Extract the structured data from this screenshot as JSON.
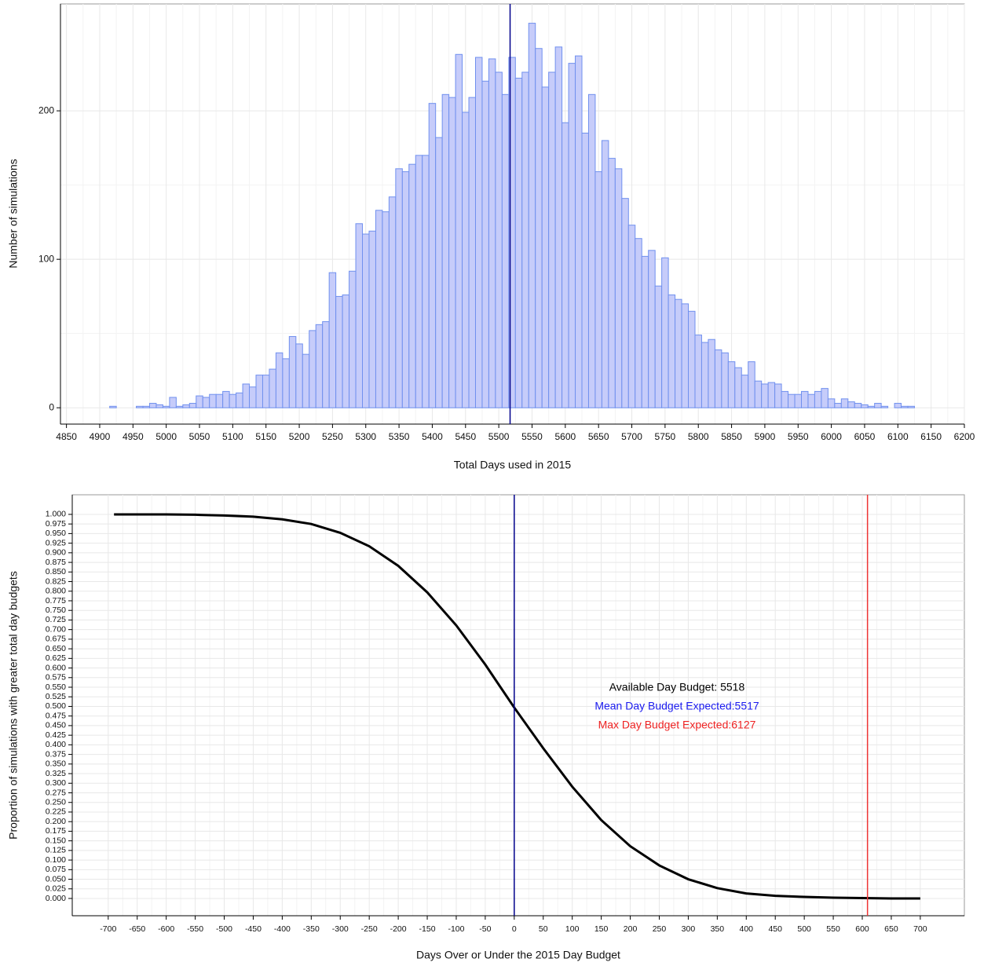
{
  "chart_data": [
    {
      "type": "histogram",
      "xlabel": "Total Days used in 2015",
      "ylabel": "Number of simulations",
      "bins": [
        4905,
        4915,
        4925,
        4935,
        4945,
        4955,
        4965,
        4975,
        4985,
        4995,
        5005,
        5015,
        5025,
        5035,
        5045,
        5055,
        5065,
        5075,
        5085,
        5095,
        5105,
        5115,
        5125,
        5135,
        5145,
        5155,
        5165,
        5175,
        5185,
        5195,
        5205,
        5215,
        5225,
        5235,
        5245,
        5255,
        5265,
        5275,
        5285,
        5295,
        5305,
        5315,
        5325,
        5335,
        5345,
        5355,
        5365,
        5375,
        5385,
        5395,
        5405,
        5415,
        5425,
        5435,
        5445,
        5455,
        5465,
        5475,
        5485,
        5495,
        5505,
        5515,
        5525,
        5535,
        5545,
        5555,
        5565,
        5575,
        5585,
        5595,
        5605,
        5615,
        5625,
        5635,
        5645,
        5655,
        5665,
        5675,
        5685,
        5695,
        5705,
        5715,
        5725,
        5735,
        5745,
        5755,
        5765,
        5775,
        5785,
        5795,
        5805,
        5815,
        5825,
        5835,
        5845,
        5855,
        5865,
        5875,
        5885,
        5895,
        5905,
        5915,
        5925,
        5935,
        5945,
        5955,
        5965,
        5975,
        5985,
        5995,
        6005,
        6015,
        6025,
        6035,
        6045,
        6055,
        6065,
        6075,
        6085,
        6095,
        6105,
        6115,
        6125,
        6135
      ],
      "values": [
        0,
        1,
        0,
        0,
        0,
        1,
        1,
        3,
        2,
        1,
        7,
        1,
        2,
        3,
        8,
        7,
        9,
        9,
        11,
        9,
        10,
        16,
        14,
        22,
        22,
        26,
        37,
        33,
        48,
        43,
        36,
        52,
        56,
        58,
        91,
        75,
        76,
        92,
        124,
        117,
        119,
        133,
        132,
        142,
        161,
        159,
        164,
        170,
        170,
        205,
        182,
        211,
        209,
        238,
        199,
        209,
        236,
        220,
        235,
        226,
        211,
        236,
        222,
        226,
        259,
        242,
        216,
        226,
        243,
        192,
        232,
        237,
        185,
        211,
        159,
        180,
        168,
        161,
        141,
        123,
        114,
        102,
        106,
        82,
        101,
        76,
        73,
        70,
        65,
        49,
        44,
        46,
        39,
        37,
        31,
        27,
        22,
        31,
        18,
        16,
        17,
        16,
        11,
        9,
        9,
        11,
        9,
        11,
        13,
        6,
        3,
        6,
        4,
        3,
        2,
        1,
        3,
        1,
        0,
        3,
        1,
        1,
        0
      ],
      "color": "#c6ccfa",
      "edgecolor": "#7090ee",
      "vlines": [
        {
          "value": 5517,
          "color": "#00008b"
        }
      ],
      "xlim": [
        4841,
        6200
      ],
      "xticks": [
        4850,
        4900,
        4950,
        5000,
        5050,
        5100,
        5150,
        5200,
        5250,
        5300,
        5350,
        5400,
        5450,
        5500,
        5550,
        5600,
        5650,
        5700,
        5750,
        5800,
        5850,
        5900,
        5950,
        6000,
        6050,
        6100,
        6150,
        6200
      ],
      "ylim": [
        -11,
        272
      ],
      "yticks": [
        0,
        100,
        200
      ],
      "grid": true
    },
    {
      "type": "line",
      "xlabel": "Days Over or Under the 2015 Day Budget",
      "ylabel": "Proportion of simulations with greater total day budgets",
      "x": [
        -690,
        -650,
        -600,
        -550,
        -500,
        -450,
        -400,
        -350,
        -300,
        -250,
        -200,
        -150,
        -100,
        -50,
        0,
        50,
        100,
        150,
        200,
        250,
        300,
        350,
        400,
        450,
        500,
        550,
        600,
        650,
        700
      ],
      "values": [
        1.0,
        1.0,
        1.0,
        0.999,
        0.997,
        0.994,
        0.987,
        0.975,
        0.952,
        0.917,
        0.866,
        0.797,
        0.711,
        0.609,
        0.497,
        0.391,
        0.291,
        0.204,
        0.136,
        0.086,
        0.05,
        0.027,
        0.013,
        0.007,
        0.004,
        0.002,
        0.001,
        0.0,
        0.0
      ],
      "color": "#000000",
      "vlines": [
        {
          "value": 0,
          "color": "#00008b"
        },
        {
          "value": 609,
          "color": "#ee3333"
        }
      ],
      "annotations": [
        {
          "text": "Available Day Budget: 5518",
          "color": "#000000"
        },
        {
          "text": "Mean Day Budget Expected:5517",
          "color": "#1a1aee"
        },
        {
          "text": "Max Day Budget Expected:6127",
          "color": "#ee2222"
        }
      ],
      "xlim": [
        -762,
        776
      ],
      "xticks": [
        -700,
        -650,
        -600,
        -550,
        -500,
        -450,
        -400,
        -350,
        -300,
        -250,
        -200,
        -150,
        -100,
        -50,
        0,
        50,
        100,
        150,
        200,
        250,
        300,
        350,
        400,
        450,
        500,
        550,
        600,
        650,
        700
      ],
      "ylim": [
        -0.045,
        1.051
      ],
      "yticks": [
        {
          "value": 0,
          "label": "0.000"
        },
        {
          "value": 0.025,
          "label": "0.025"
        },
        {
          "value": 0.05,
          "label": "0.050"
        },
        {
          "value": 0.075,
          "label": "0.075"
        },
        {
          "value": 0.1,
          "label": "0.100"
        },
        {
          "value": 0.125,
          "label": "0.125"
        },
        {
          "value": 0.15,
          "label": "0.150"
        },
        {
          "value": 0.175,
          "label": "0.175"
        },
        {
          "value": 0.2,
          "label": "0.200"
        },
        {
          "value": 0.225,
          "label": "0.225"
        },
        {
          "value": 0.25,
          "label": "0.250"
        },
        {
          "value": 0.275,
          "label": "0.275"
        },
        {
          "value": 0.3,
          "label": "0.300"
        },
        {
          "value": 0.325,
          "label": "0.325"
        },
        {
          "value": 0.35,
          "label": "0.350"
        },
        {
          "value": 0.375,
          "label": "0.375"
        },
        {
          "value": 0.4,
          "label": "0.400"
        },
        {
          "value": 0.425,
          "label": "0.425"
        },
        {
          "value": 0.45,
          "label": "0.450"
        },
        {
          "value": 0.475,
          "label": "0.475"
        },
        {
          "value": 0.5,
          "label": "0.500"
        },
        {
          "value": 0.525,
          "label": "0.525"
        },
        {
          "value": 0.55,
          "label": "0.550"
        },
        {
          "value": 0.575,
          "label": "0.575"
        },
        {
          "value": 0.6,
          "label": "0.600"
        },
        {
          "value": 0.625,
          "label": "0.625"
        },
        {
          "value": 0.65,
          "label": "0.650"
        },
        {
          "value": 0.675,
          "label": "0.675"
        },
        {
          "value": 0.7,
          "label": "0.700"
        },
        {
          "value": 0.725,
          "label": "0.725"
        },
        {
          "value": 0.75,
          "label": "0.750"
        },
        {
          "value": 0.775,
          "label": "0.775"
        },
        {
          "value": 0.8,
          "label": "0.800"
        },
        {
          "value": 0.825,
          "label": "0.825"
        },
        {
          "value": 0.85,
          "label": "0.850"
        },
        {
          "value": 0.875,
          "label": "0.875"
        },
        {
          "value": 0.9,
          "label": "0.900"
        },
        {
          "value": 0.925,
          "label": "0.925"
        },
        {
          "value": 0.95,
          "label": "0.950"
        },
        {
          "value": 0.975,
          "label": "0.975"
        },
        {
          "value": 1,
          "label": "1.000"
        }
      ],
      "grid": true
    }
  ]
}
